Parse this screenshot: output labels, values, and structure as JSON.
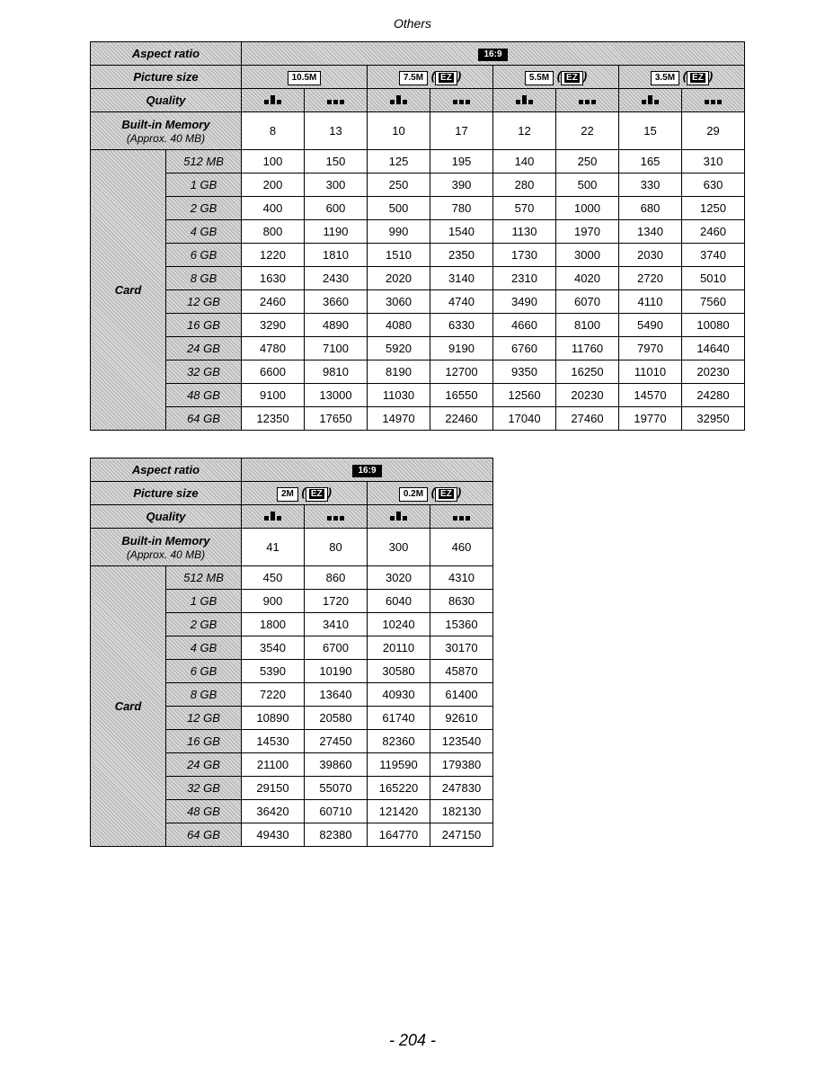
{
  "page": {
    "title": "Others",
    "number": "- 204 -"
  },
  "labels": {
    "aspect_ratio": "Aspect ratio",
    "picture_size": "Picture size",
    "quality": "Quality",
    "builtin_main": "Built-in Memory",
    "builtin_sub": "(Approx. 40 MB)",
    "card": "Card",
    "ez": "EZ",
    "aspect_value": "16:9"
  },
  "colors": {
    "border": "#000000",
    "background": "#ffffff",
    "header_dark": "#b0b0b0",
    "header_light": "#d8d8d8"
  },
  "table1": {
    "type": "table",
    "picture_sizes": [
      "10.5M",
      "7.5M",
      "5.5M",
      "3.5M"
    ],
    "size_has_ez": [
      false,
      true,
      true,
      true
    ],
    "storage_labels": [
      "512 MB",
      "1 GB",
      "2 GB",
      "4 GB",
      "6 GB",
      "8 GB",
      "12 GB",
      "16 GB",
      "24 GB",
      "32 GB",
      "48 GB",
      "64 GB"
    ],
    "builtin": [
      8,
      13,
      10,
      17,
      12,
      22,
      15,
      29
    ],
    "rows": [
      [
        100,
        150,
        125,
        195,
        140,
        250,
        165,
        310
      ],
      [
        200,
        300,
        250,
        390,
        280,
        500,
        330,
        630
      ],
      [
        400,
        600,
        500,
        780,
        570,
        1000,
        680,
        1250
      ],
      [
        800,
        1190,
        990,
        1540,
        1130,
        1970,
        1340,
        2460
      ],
      [
        1220,
        1810,
        1510,
        2350,
        1730,
        3000,
        2030,
        3740
      ],
      [
        1630,
        2430,
        2020,
        3140,
        2310,
        4020,
        2720,
        5010
      ],
      [
        2460,
        3660,
        3060,
        4740,
        3490,
        6070,
        4110,
        7560
      ],
      [
        3290,
        4890,
        4080,
        6330,
        4660,
        8100,
        5490,
        10080
      ],
      [
        4780,
        7100,
        5920,
        9190,
        6760,
        11760,
        7970,
        14640
      ],
      [
        6600,
        9810,
        8190,
        12700,
        9350,
        16250,
        11010,
        20230
      ],
      [
        9100,
        13000,
        11030,
        16550,
        12560,
        20230,
        14570,
        24280
      ],
      [
        12350,
        17650,
        14970,
        22460,
        17040,
        27460,
        19770,
        32950
      ]
    ]
  },
  "table2": {
    "type": "table",
    "picture_sizes": [
      "2M",
      "0.2M"
    ],
    "size_has_ez": [
      true,
      true
    ],
    "storage_labels": [
      "512 MB",
      "1 GB",
      "2 GB",
      "4 GB",
      "6 GB",
      "8 GB",
      "12 GB",
      "16 GB",
      "24 GB",
      "32 GB",
      "48 GB",
      "64 GB"
    ],
    "builtin": [
      41,
      80,
      300,
      460
    ],
    "rows": [
      [
        450,
        860,
        3020,
        4310
      ],
      [
        900,
        1720,
        6040,
        8630
      ],
      [
        1800,
        3410,
        10240,
        15360
      ],
      [
        3540,
        6700,
        20110,
        30170
      ],
      [
        5390,
        10190,
        30580,
        45870
      ],
      [
        7220,
        13640,
        40930,
        61400
      ],
      [
        10890,
        20580,
        61740,
        92610
      ],
      [
        14530,
        27450,
        82360,
        123540
      ],
      [
        21100,
        39860,
        119590,
        179380
      ],
      [
        29150,
        55070,
        165220,
        247830
      ],
      [
        36420,
        60710,
        121420,
        182130
      ],
      [
        49430,
        82380,
        164770,
        247150
      ]
    ]
  }
}
